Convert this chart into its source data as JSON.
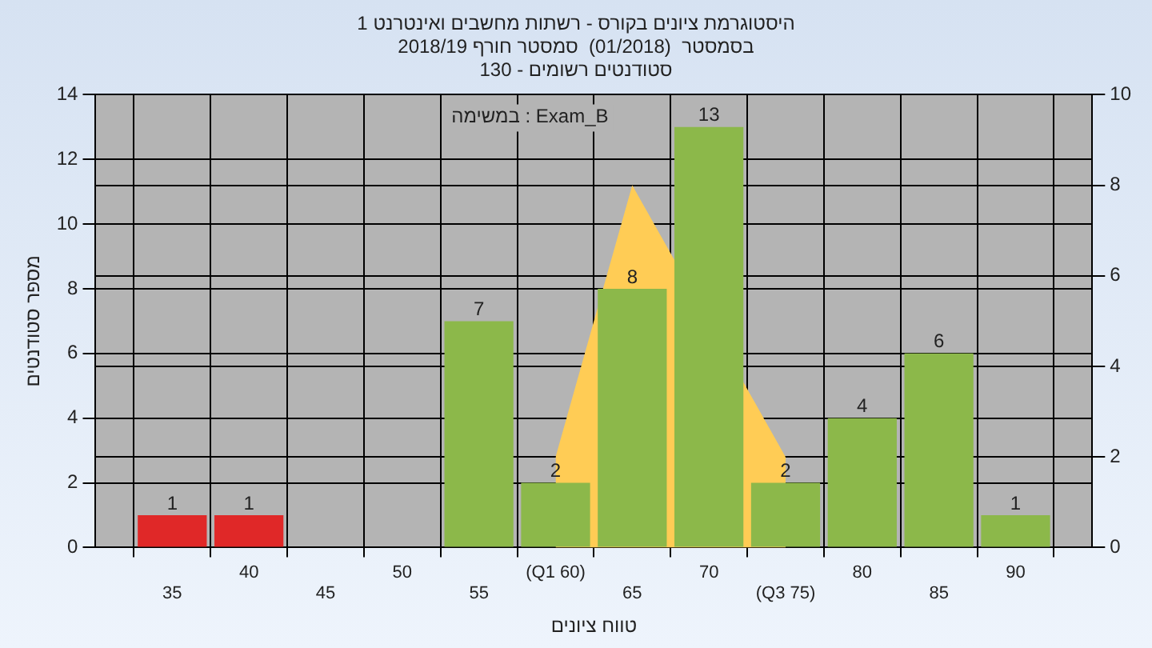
{
  "chart_data": {
    "type": "bar",
    "title": "היסטוגרמת ציונים בקורס - רשתות מחשבים ואינטרנט 1",
    "subtitle": "בסמסטר  (01/2018)  סמסטר חורף 2018/19\nסטודנטים רשומים - 130",
    "xlabel": "טווח ציונים",
    "ylabel": "מספר סטודנטים",
    "annotations": [
      "במשימה : Exam_B"
    ],
    "categories": [
      null,
      "35",
      "40",
      "45",
      "50",
      "55",
      "(Q1 60)",
      "65",
      "70",
      "(Q3 75)",
      "80",
      "85",
      "90",
      null
    ],
    "series": [
      {
        "colors": [
          null,
          "#e02828",
          "#e02828",
          "#8cb84a",
          "#8cb84a",
          "#8cb84a",
          "#8cb84a",
          "#8cb84a",
          "#8cb84a",
          "#8cb84a",
          "#8cb84a",
          "#8cb84a",
          "#8cb84a",
          null
        ],
        "values": [
          null,
          1,
          1,
          0,
          0,
          7,
          2,
          8,
          13,
          2,
          4,
          6,
          1,
          null
        ],
        "value_labels": [
          null,
          "1",
          "1",
          null,
          null,
          "7",
          "2",
          "8",
          "13",
          "2",
          "4",
          "6",
          "1",
          null
        ]
      },
      {
        "type": "area",
        "axis": "y2",
        "color": "#ffcc55",
        "values": [
          null,
          null,
          null,
          null,
          null,
          null,
          2,
          8,
          null,
          2,
          null,
          null,
          null,
          null
        ]
      }
    ],
    "ylim": [
      0,
      14
    ],
    "yticks": [
      0,
      2,
      4,
      6,
      8,
      10,
      12,
      14
    ],
    "y2lim": [
      0,
      10
    ],
    "y2ticks": [
      0,
      2,
      4,
      6,
      8,
      10
    ],
    "grid": true,
    "legend": false
  }
}
